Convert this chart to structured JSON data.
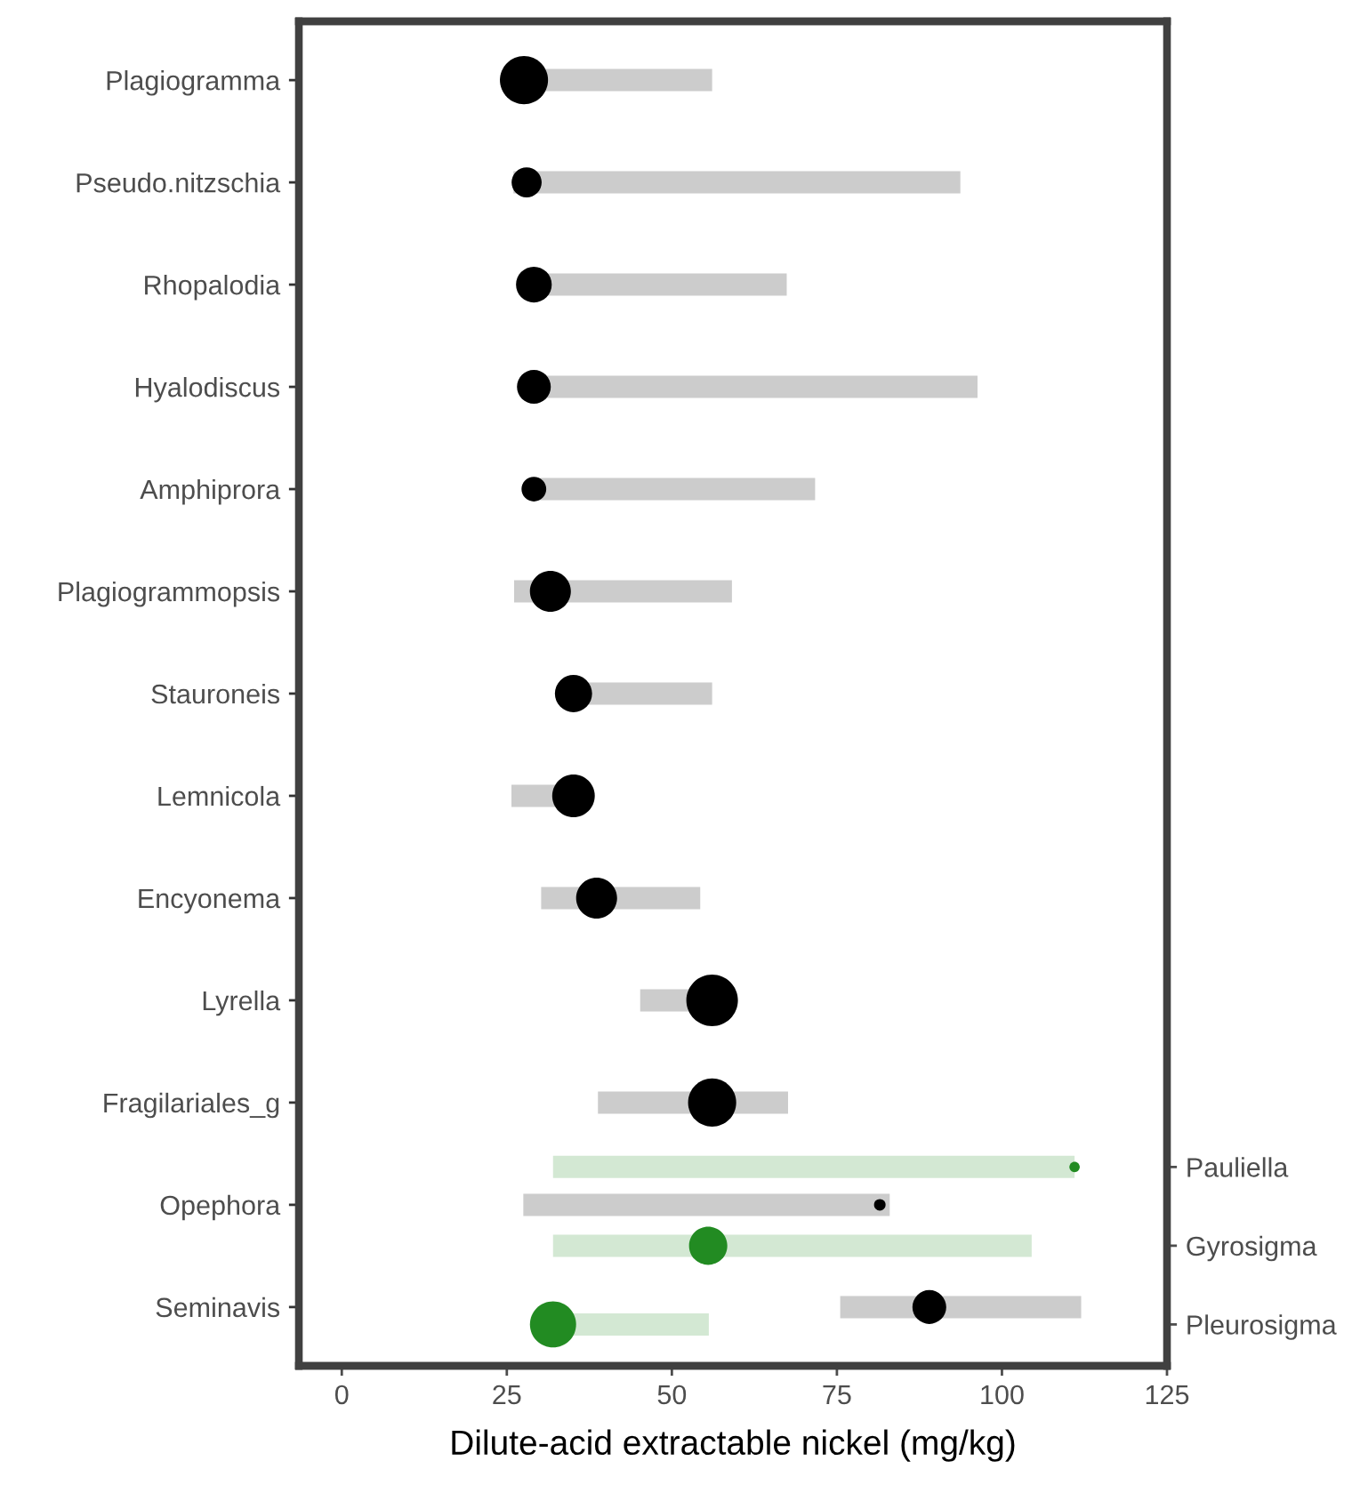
{
  "chart_data": {
    "type": "bubble",
    "orientation": "horizontal",
    "xlabel": "Dilute-acid extractable nickel (mg/kg)",
    "categories": [
      "Plagiogramma",
      "Pseudo.nitzschia",
      "Rhopalodia",
      "Hyalodiscus",
      "Amphiprora",
      "Plagiogrammopsis",
      "Stauroneis",
      "Lemnicola",
      "Encyonema",
      "Lyrella",
      "Fragilariales_g",
      "Opephora",
      "Seminavis"
    ],
    "y2_categories": [
      null,
      null,
      null,
      null,
      null,
      null,
      null,
      null,
      null,
      null,
      "Pauliella",
      "Gyrosigma",
      "Pleurosigma"
    ],
    "xlim": [
      -6.5,
      125
    ],
    "xticks": [
      0,
      25,
      50,
      75,
      100,
      125
    ],
    "grid": false,
    "legend": false,
    "series": [
      {
        "color": "#000000",
        "values": [
          27.6,
          28.0,
          29.1,
          29.1,
          29.1,
          31.6,
          35.1,
          35.1,
          38.6,
          56.1,
          56.1,
          81.5,
          89.0
        ],
        "sizes": [
          0.87,
          0.34,
          0.48,
          0.43,
          0.23,
          0.63,
          0.52,
          0.68,
          0.63,
          1,
          0.87,
          0.05,
          0.43
        ],
        "errors": [
          [
            27.6,
            56.1
          ],
          [
            26,
            93.7
          ],
          [
            29.1,
            67.4
          ],
          [
            29.1,
            96.3
          ],
          [
            29.1,
            71.7
          ],
          [
            26.1,
            59.1
          ],
          [
            35.1,
            56.1
          ],
          [
            25.7,
            35.1
          ],
          [
            30.2,
            54.3
          ],
          [
            45.2,
            56.1
          ],
          [
            38.8,
            67.6
          ],
          [
            27.5,
            83.0
          ],
          [
            75.5,
            112.0
          ]
        ]
      },
      {
        "color": "#228b22",
        "axis": "y2",
        "values": [
          null,
          null,
          null,
          null,
          null,
          null,
          null,
          null,
          null,
          null,
          111.0,
          55.5,
          32.0
        ],
        "sizes": [
          null,
          null,
          null,
          null,
          null,
          null,
          null,
          null,
          null,
          null,
          0.04,
          0.55,
          0.8
        ],
        "errors": [
          null,
          null,
          null,
          null,
          null,
          null,
          null,
          null,
          null,
          null,
          [
            32.0,
            111.0
          ],
          [
            32.0,
            104.5
          ],
          [
            32.0,
            55.6
          ]
        ]
      }
    ]
  }
}
